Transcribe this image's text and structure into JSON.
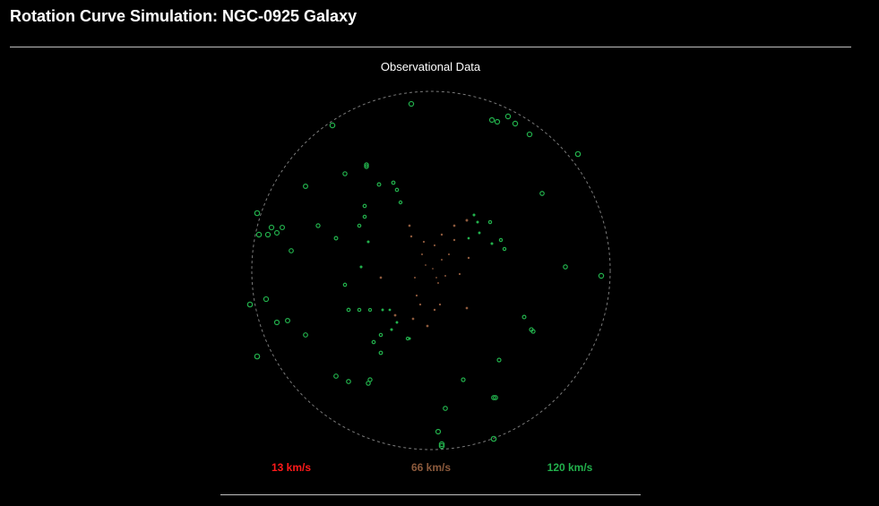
{
  "page": {
    "title": "Rotation Curve Simulation: NGC-0925 Galaxy"
  },
  "panel": {
    "title": "Observational Data"
  },
  "legend": {
    "low_label": "13 km/s",
    "low_color": "#ff1a1a",
    "mid_label": "66 km/s",
    "mid_color": "#8c5a3c",
    "high_label": "120 km/s",
    "high_color": "#22b14c"
  },
  "colors": {
    "background": "#000000",
    "rule": "#bfbfbf",
    "boundary": "#7a7a7a"
  },
  "chart_data": {
    "type": "scatter",
    "boundary": "dashed circle",
    "points": [
      {
        "x": 0.06,
        "y": 0.06,
        "v": 66
      },
      {
        "x": -0.05,
        "y": 0.09,
        "v": 66
      },
      {
        "x": 0.02,
        "y": 0.14,
        "v": 66
      },
      {
        "x": 0.08,
        "y": -0.03,
        "v": 66
      },
      {
        "x": -0.09,
        "y": -0.04,
        "v": 66
      },
      {
        "x": 0.01,
        "y": 0.01,
        "v": 66
      },
      {
        "x": -0.03,
        "y": 0.03,
        "v": 66
      },
      {
        "x": 0.04,
        "y": -0.07,
        "v": 66
      },
      {
        "x": -0.11,
        "y": 0.19,
        "v": 66
      },
      {
        "x": -0.12,
        "y": 0.25,
        "v": 66
      },
      {
        "x": 0.13,
        "y": 0.25,
        "v": 66
      },
      {
        "x": 0.21,
        "y": 0.07,
        "v": 66
      },
      {
        "x": 0.2,
        "y": -0.21,
        "v": 66
      },
      {
        "x": 0.16,
        "y": -0.02,
        "v": 66
      },
      {
        "x": -0.04,
        "y": 0.16,
        "v": 66
      },
      {
        "x": 0.06,
        "y": 0.2,
        "v": 66
      },
      {
        "x": -0.28,
        "y": -0.04,
        "v": 66
      },
      {
        "x": -0.08,
        "y": -0.14,
        "v": 66
      },
      {
        "x": 0.02,
        "y": -0.22,
        "v": 66
      },
      {
        "x": 0.05,
        "y": -0.19,
        "v": 66
      },
      {
        "x": -0.1,
        "y": -0.27,
        "v": 66
      },
      {
        "x": -0.02,
        "y": -0.31,
        "v": 66
      },
      {
        "x": 0.13,
        "y": 0.17,
        "v": 66
      },
      {
        "x": 0.2,
        "y": 0.28,
        "v": 66
      },
      {
        "x": -0.2,
        "y": -0.25,
        "v": 66
      },
      {
        "x": 0.1,
        "y": 0.09,
        "v": 66
      },
      {
        "x": -0.06,
        "y": -0.19,
        "v": 66
      },
      {
        "x": 0.03,
        "y": -0.04,
        "v": 66
      },
      {
        "x": -0.35,
        "y": 0.16,
        "v": 120
      },
      {
        "x": -0.4,
        "y": 0.25,
        "v": 120
      },
      {
        "x": -0.29,
        "y": 0.48,
        "v": 120
      },
      {
        "x": -0.37,
        "y": 0.36,
        "v": 120
      },
      {
        "x": -0.39,
        "y": 0.02,
        "v": 120
      },
      {
        "x": -0.48,
        "y": -0.08,
        "v": 120
      },
      {
        "x": -0.53,
        "y": 0.18,
        "v": 120
      },
      {
        "x": -0.27,
        "y": -0.22,
        "v": 120
      },
      {
        "x": -0.23,
        "y": -0.22,
        "v": 120
      },
      {
        "x": -0.46,
        "y": -0.22,
        "v": 120
      },
      {
        "x": -0.4,
        "y": -0.22,
        "v": 120
      },
      {
        "x": -0.34,
        "y": -0.22,
        "v": 120
      },
      {
        "x": -0.32,
        "y": -0.4,
        "v": 120
      },
      {
        "x": -0.28,
        "y": -0.36,
        "v": 120
      },
      {
        "x": -0.22,
        "y": -0.33,
        "v": 120
      },
      {
        "x": -0.19,
        "y": -0.29,
        "v": 120
      },
      {
        "x": -0.12,
        "y": -0.38,
        "v": 120
      },
      {
        "x": -0.37,
        "y": 0.3,
        "v": 120
      },
      {
        "x": -0.21,
        "y": 0.49,
        "v": 120
      },
      {
        "x": -0.19,
        "y": 0.45,
        "v": 120
      },
      {
        "x": -0.17,
        "y": 0.38,
        "v": 120
      },
      {
        "x": 0.27,
        "y": 0.21,
        "v": 120
      },
      {
        "x": 0.21,
        "y": 0.18,
        "v": 120
      },
      {
        "x": 0.39,
        "y": 0.17,
        "v": 120
      },
      {
        "x": 0.34,
        "y": 0.15,
        "v": 120
      },
      {
        "x": 0.41,
        "y": 0.12,
        "v": 120
      },
      {
        "x": 0.26,
        "y": 0.27,
        "v": 120
      },
      {
        "x": 0.33,
        "y": 0.27,
        "v": 120
      },
      {
        "x": 0.24,
        "y": 0.31,
        "v": 120
      },
      {
        "x": 0.62,
        "y": 0.43,
        "v": 120
      },
      {
        "x": 0.82,
        "y": 0.65,
        "v": 120
      },
      {
        "x": 0.55,
        "y": 0.76,
        "v": 120
      },
      {
        "x": 0.47,
        "y": 0.82,
        "v": 120
      },
      {
        "x": 0.43,
        "y": 0.86,
        "v": 120
      },
      {
        "x": 0.37,
        "y": 0.83,
        "v": 120
      },
      {
        "x": 0.34,
        "y": 0.84,
        "v": 120
      },
      {
        "x": -0.11,
        "y": 0.93,
        "v": 120
      },
      {
        "x": -0.36,
        "y": 0.59,
        "v": 120
      },
      {
        "x": -0.36,
        "y": 0.58,
        "v": 120
      },
      {
        "x": -0.48,
        "y": 0.54,
        "v": 120
      },
      {
        "x": -0.55,
        "y": 0.81,
        "v": 120
      },
      {
        "x": -0.96,
        "y": 0.2,
        "v": 120
      },
      {
        "x": -0.78,
        "y": 0.11,
        "v": 120
      },
      {
        "x": -0.91,
        "y": 0.2,
        "v": 120
      },
      {
        "x": -0.97,
        "y": 0.32,
        "v": 120
      },
      {
        "x": -0.7,
        "y": 0.47,
        "v": 120
      },
      {
        "x": -0.86,
        "y": 0.21,
        "v": 120
      },
      {
        "x": -0.89,
        "y": 0.24,
        "v": 120
      },
      {
        "x": -0.83,
        "y": 0.24,
        "v": 120
      },
      {
        "x": -0.63,
        "y": 0.25,
        "v": 120
      },
      {
        "x": -1.01,
        "y": -0.19,
        "v": 120
      },
      {
        "x": -0.86,
        "y": -0.29,
        "v": 120
      },
      {
        "x": -0.92,
        "y": -0.16,
        "v": 120
      },
      {
        "x": -0.97,
        "y": -0.48,
        "v": 120
      },
      {
        "x": -0.46,
        "y": -0.62,
        "v": 120
      },
      {
        "x": -0.53,
        "y": -0.59,
        "v": 120
      },
      {
        "x": -0.7,
        "y": -0.36,
        "v": 120
      },
      {
        "x": -0.8,
        "y": -0.28,
        "v": 120
      },
      {
        "x": -0.35,
        "y": -0.63,
        "v": 120
      },
      {
        "x": -0.34,
        "y": -0.61,
        "v": 120
      },
      {
        "x": 0.18,
        "y": -0.61,
        "v": 120
      },
      {
        "x": 0.06,
        "y": -0.97,
        "v": 120
      },
      {
        "x": 0.06,
        "y": -0.98,
        "v": 120
      },
      {
        "x": 0.08,
        "y": -0.77,
        "v": 120
      },
      {
        "x": 0.04,
        "y": -0.9,
        "v": 120
      },
      {
        "x": 0.36,
        "y": -0.71,
        "v": 120
      },
      {
        "x": 0.35,
        "y": -0.71,
        "v": 120
      },
      {
        "x": 0.35,
        "y": -0.94,
        "v": 120
      },
      {
        "x": 0.38,
        "y": -0.5,
        "v": 120
      },
      {
        "x": 0.56,
        "y": -0.33,
        "v": 120
      },
      {
        "x": 0.57,
        "y": -0.34,
        "v": 120
      },
      {
        "x": 0.52,
        "y": -0.26,
        "v": 120
      },
      {
        "x": 0.75,
        "y": 0.02,
        "v": 120
      },
      {
        "x": 0.95,
        "y": -0.03,
        "v": 120
      },
      {
        "x": -0.28,
        "y": -0.46,
        "v": 120
      },
      {
        "x": -0.13,
        "y": -0.38,
        "v": 120
      }
    ]
  }
}
